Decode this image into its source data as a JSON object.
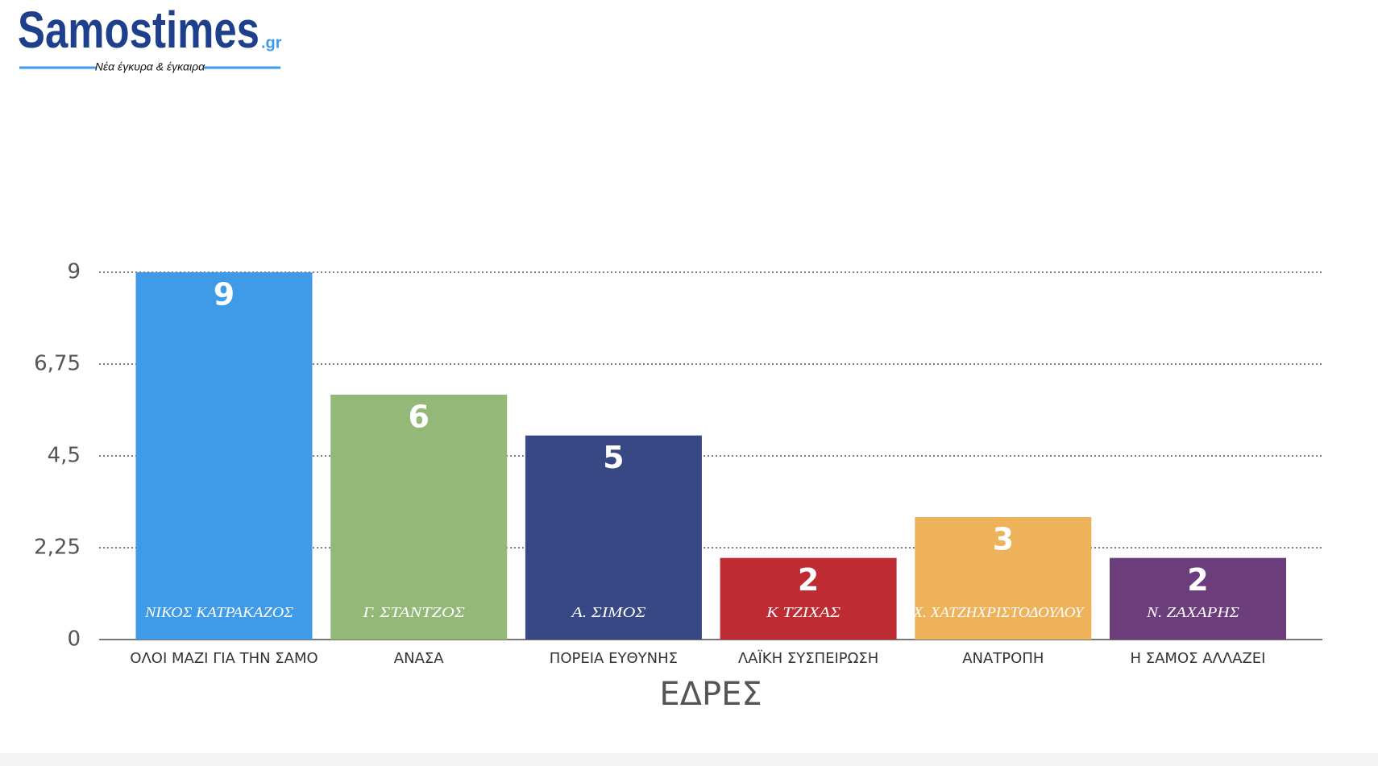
{
  "header": {
    "logo": "Samostimes",
    "logo_suffix": ".gr",
    "slogan": "Νέα έγκυρα & έγκαιρα"
  },
  "chart_data": {
    "type": "bar",
    "x_label": "ΕΔΡΕΣ",
    "categories": [
      "ΟΛΟΙ ΜΑΖΙ ΓΙΑ ΤΗΝ ΣΑΜΟ",
      "ΑΝΑΣΑ",
      "ΠΟΡΕΙΑ ΕΥΘΥΝΗΣ",
      "ΛΑΪΚΗ ΣΥΣΠΕΙΡΩΣΗ",
      "ΑΝΑΤΡΟΠΗ",
      "Η ΣΑΜΟΣ ΑΛΛΑΖΕΙ"
    ],
    "values": [
      9,
      6,
      5,
      2,
      3,
      2
    ],
    "bar_labels": [
      "ΝΙΚΟΣ ΚΑΤΡΑΚΑΖΟΣ",
      "Γ. ΣΤΑΝΤΖΟΣ",
      "Α. ΣΙΜΟΣ",
      "Κ ΤΖΙΧΑΣ",
      "Χ. ΧΑΤΖΗΧΡΙΣΤΟΔΟΥΛΟΥ",
      "Ν. ΖΑΧΑΡΗΣ"
    ],
    "colors": [
      "#3f9ae8",
      "#93b878",
      "#384884",
      "#be2b33",
      "#eeb35a",
      "#6b3d7a"
    ],
    "ylim": [
      0,
      9
    ],
    "yticks": [
      0,
      {
        "value": 2.25,
        "label": "2,25"
      },
      {
        "value": 4.5,
        "label": "4,5"
      },
      {
        "value": 6.75,
        "label": "6,75"
      },
      9
    ],
    "grid": true
  }
}
